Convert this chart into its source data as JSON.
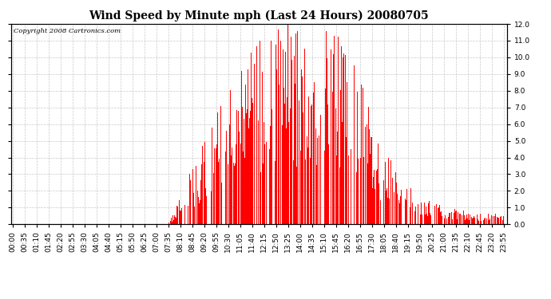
{
  "title": "Wind Speed by Minute mph (Last 24 Hours) 20080705",
  "copyright": "Copyright 2008 Cartronics.com",
  "bar_color": "#FF0000",
  "background_color": "#FFFFFF",
  "plot_bg_color": "#FFFFFF",
  "grid_color": "#BBBBBB",
  "ylim": [
    0.0,
    12.0
  ],
  "ytick_step": 1.0,
  "title_fontsize": 10,
  "tick_fontsize": 6.5,
  "copyright_fontsize": 6,
  "x_tick_labels": [
    "00:00",
    "00:35",
    "01:10",
    "01:45",
    "02:20",
    "02:55",
    "03:30",
    "04:05",
    "04:40",
    "05:15",
    "05:50",
    "06:25",
    "07:00",
    "07:35",
    "08:10",
    "08:45",
    "09:20",
    "09:55",
    "10:30",
    "11:05",
    "11:40",
    "12:15",
    "12:50",
    "13:25",
    "14:00",
    "14:35",
    "15:10",
    "15:45",
    "16:20",
    "16:55",
    "17:30",
    "18:05",
    "18:40",
    "19:15",
    "19:50",
    "20:25",
    "21:00",
    "21:35",
    "22:10",
    "22:45",
    "23:20",
    "23:55"
  ],
  "num_minutes": 1440,
  "tick_interval": 35
}
